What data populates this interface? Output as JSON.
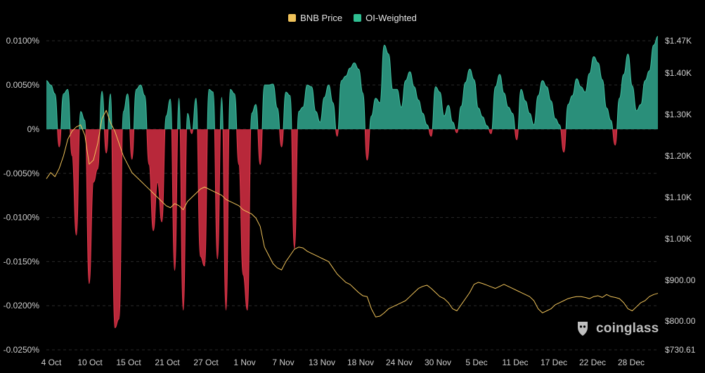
{
  "legend": {
    "price_label": "BNB Price",
    "oi_label": "OI-Weighted"
  },
  "watermark": "coinglass",
  "colors": {
    "price_line": "#f0c35a",
    "positive_fill": "#2a8f7a",
    "positive_stroke": "#3fc0a0",
    "negative_fill": "#b8283a",
    "negative_stroke": "#e03a4c",
    "grid": "#2a2a2a",
    "axis_text": "#cfcfcf"
  },
  "chart_data": {
    "type": "area",
    "x_ticks": [
      "4 Oct",
      "10 Oct",
      "15 Oct",
      "21 Oct",
      "27 Oct",
      "1 Nov",
      "7 Nov",
      "13 Nov",
      "18 Nov",
      "24 Nov",
      "30 Nov",
      "5 Dec",
      "11 Dec",
      "17 Dec",
      "22 Dec",
      "28 Dec"
    ],
    "left_axis": {
      "ticks": [
        "0.0100%",
        "0.0050%",
        "0%",
        "-0.0050%",
        "-0.0100%",
        "-0.0150%",
        "-0.0200%",
        "-0.0250%"
      ],
      "values": [
        0.01,
        0.005,
        0,
        -0.005,
        -0.01,
        -0.015,
        -0.02,
        -0.025
      ],
      "ylim": [
        -0.025,
        0.01
      ]
    },
    "right_axis": {
      "ticks": [
        "$1.47K",
        "$1.40K",
        "$1.30K",
        "$1.20K",
        "$1.10K",
        "$1.00K",
        "$900.00",
        "$800.00",
        "$730.61"
      ],
      "values": [
        1470,
        1400,
        1300,
        1200,
        1100,
        1000,
        900,
        800,
        730.61
      ],
      "ylim": [
        730.61,
        1470
      ]
    },
    "series": [
      {
        "name": "BNB Price",
        "axis": "right",
        "values": [
          1145,
          1160,
          1150,
          1170,
          1200,
          1240,
          1260,
          1270,
          1275,
          1250,
          1180,
          1190,
          1230,
          1290,
          1310,
          1280,
          1260,
          1230,
          1200,
          1180,
          1160,
          1150,
          1140,
          1130,
          1120,
          1110,
          1100,
          1090,
          1080,
          1075,
          1085,
          1080,
          1070,
          1090,
          1100,
          1110,
          1120,
          1125,
          1120,
          1115,
          1110,
          1105,
          1095,
          1090,
          1085,
          1080,
          1070,
          1065,
          1060,
          1050,
          1030,
          980,
          960,
          940,
          930,
          925,
          945,
          960,
          975,
          980,
          978,
          970,
          965,
          960,
          955,
          950,
          945,
          930,
          915,
          905,
          895,
          890,
          880,
          870,
          862,
          860,
          830,
          810,
          812,
          820,
          830,
          835,
          840,
          845,
          850,
          860,
          870,
          880,
          885,
          888,
          880,
          870,
          860,
          855,
          845,
          830,
          825,
          840,
          855,
          870,
          890,
          895,
          892,
          888,
          884,
          880,
          885,
          890,
          885,
          880,
          875,
          870,
          865,
          860,
          850,
          830,
          820,
          825,
          830,
          840,
          845,
          850,
          855,
          858,
          860,
          860,
          858,
          855,
          860,
          862,
          858,
          865,
          860,
          858,
          855,
          845,
          830,
          825,
          835,
          845,
          850,
          860,
          865,
          868
        ]
      },
      {
        "name": "OI-Weighted",
        "axis": "left",
        "values": [
          0.0055,
          0.005,
          0.004,
          -0.002,
          0.004,
          0.0045,
          -0.003,
          -0.012,
          0.002,
          0.001,
          -0.0175,
          -0.006,
          -0.0045,
          0.0043,
          -0.0027,
          0.004,
          -0.0225,
          -0.0215,
          0.002,
          0.004,
          -0.0034,
          0.0045,
          0.005,
          0.0038,
          -0.004,
          -0.0115,
          -0.006,
          -0.0105,
          0.0015,
          0.0034,
          -0.016,
          0.0035,
          -0.0205,
          0.0018,
          -0.0005,
          0.0035,
          -0.0144,
          -0.0155,
          0.0045,
          0.0042,
          -0.0147,
          0.0036,
          -0.0205,
          0.0045,
          0.004,
          -0.004,
          -0.0165,
          -0.0205,
          0.0018,
          0.0028,
          -0.004,
          0.005,
          0.005,
          0.0051,
          0.0024,
          -0.002,
          0.0042,
          0.0038,
          -0.0135,
          0.002,
          0.0025,
          0.005,
          0.0048,
          0.002,
          0.0008,
          0.0036,
          0.005,
          0.003,
          -0.0008,
          0.0055,
          0.006,
          0.0069,
          0.0075,
          0.0068,
          0.0041,
          -0.0035,
          0.0015,
          0.0035,
          0.003,
          0.0095,
          0.0085,
          0.0045,
          0.0045,
          0.0025,
          0.0055,
          0.0065,
          0.0048,
          0.0033,
          0.0018,
          0.0005,
          -0.0008,
          0.0048,
          0.0042,
          0.0015,
          0.0027,
          0.0008,
          -0.0004,
          0.0026,
          0.0053,
          0.0068,
          0.0056,
          0.0024,
          0.0014,
          0.0004,
          -0.0005,
          0.0048,
          0.0062,
          0.0041,
          0.0025,
          0.0018,
          -0.0012,
          0.0045,
          0.0032,
          0.0018,
          0.0005,
          0.0038,
          0.0055,
          0.0048,
          0.0032,
          0.0012,
          0.0005,
          -0.0026,
          0.0028,
          0.0038,
          0.0057,
          0.0048,
          0.0042,
          0.0063,
          0.0082,
          0.0075,
          0.0056,
          0.0024,
          0.001,
          -0.0018,
          0.0035,
          0.0062,
          0.0085,
          0.0049,
          0.0021,
          0.0028,
          0.0055,
          0.0066,
          0.0095,
          0.0105
        ]
      }
    ],
    "grid": true,
    "legend_position": "top-center"
  }
}
